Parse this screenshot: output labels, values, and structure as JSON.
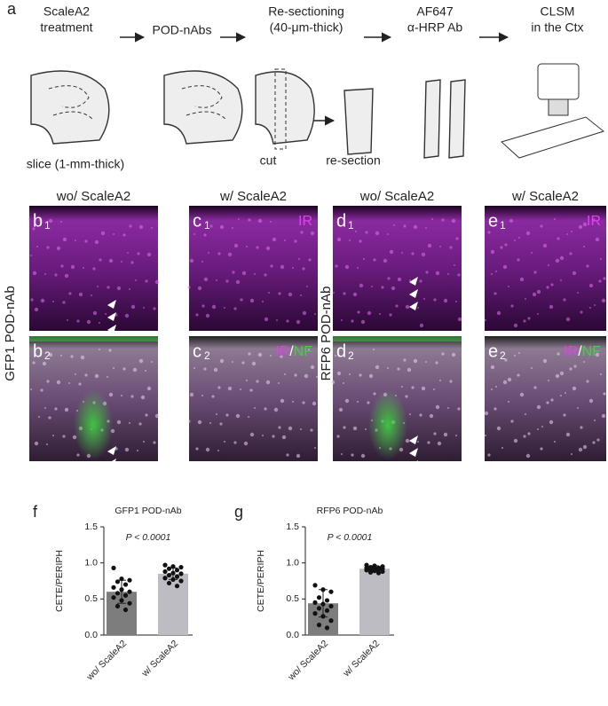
{
  "panel_a": {
    "letter": "a",
    "steps": [
      [
        "ScaleA2",
        "treatment"
      ],
      [
        "POD-nAbs"
      ],
      [
        "Re-sectioning",
        "(40-μm-thick)"
      ],
      [
        "AF647",
        "α-HRP Ab"
      ],
      [
        "CLSM",
        "in the Ctx"
      ]
    ],
    "captions": [
      "slice (1-mm-thick)",
      "cut",
      "re-section"
    ]
  },
  "micrographs": {
    "columns": [
      "wo/ ScaleA2",
      "w/ ScaleA2",
      "wo/ ScaleA2",
      "w/ ScaleA2"
    ],
    "rows": [
      "GFP1 POD-nAb",
      "RFP6 POD-nAb"
    ],
    "panels": [
      {
        "letter": "b",
        "sub": "1"
      },
      {
        "letter": "c",
        "sub": "1"
      },
      {
        "letter": "d",
        "sub": "1"
      },
      {
        "letter": "e",
        "sub": "1"
      },
      {
        "letter": "b",
        "sub": "2"
      },
      {
        "letter": "c",
        "sub": "2"
      },
      {
        "letter": "d",
        "sub": "2"
      },
      {
        "letter": "e",
        "sub": "2"
      }
    ],
    "overlay": {
      "ir": "IR",
      "slash": "/",
      "nf": "NF"
    }
  },
  "chart_data": [
    {
      "panel": "f",
      "type": "bar",
      "title": "GFP1 POD-nAb",
      "annotation": "P < 0.0001",
      "ylabel": "CETE/PERIPH",
      "categories": [
        "wo/ ScaleA2",
        "w/ ScaleA2"
      ],
      "values": [
        0.6,
        0.85
      ],
      "errors": [
        0.16,
        0.08
      ],
      "colors": [
        "#7d7d7d",
        "#bcbcc2"
      ],
      "points": [
        [
          0.93,
          0.78,
          0.76,
          0.74,
          0.7,
          0.66,
          0.63,
          0.6,
          0.58,
          0.55,
          0.52,
          0.48,
          0.44,
          0.4,
          0.35
        ],
        [
          0.97,
          0.95,
          0.94,
          0.92,
          0.9,
          0.88,
          0.86,
          0.85,
          0.83,
          0.81,
          0.79,
          0.77,
          0.75,
          0.72,
          0.68
        ]
      ],
      "ylim": [
        0,
        1.5
      ],
      "yticks": [
        {
          "value": 0,
          "label": "0.0"
        },
        {
          "value": 0.5,
          "label": "0.5"
        },
        {
          "value": 1,
          "label": "1.0"
        },
        {
          "value": 1.5,
          "label": "1.5"
        }
      ]
    },
    {
      "panel": "g",
      "type": "bar",
      "title": "RFP6 POD-nAb",
      "annotation": "P < 0.0001",
      "ylabel": "CETE/PERIPH",
      "categories": [
        "wo/ ScaleA2",
        "w/ ScaleA2"
      ],
      "values": [
        0.44,
        0.92
      ],
      "errors": [
        0.19,
        0.04
      ],
      "colors": [
        "#7d7d7d",
        "#bcbcc2"
      ],
      "points": [
        [
          0.69,
          0.63,
          0.6,
          0.52,
          0.48,
          0.45,
          0.43,
          0.4,
          0.37,
          0.34,
          0.3,
          0.26,
          0.2,
          0.14,
          0.1
        ],
        [
          0.97,
          0.96,
          0.95,
          0.94,
          0.93,
          0.93,
          0.92,
          0.92,
          0.91,
          0.91,
          0.9,
          0.89,
          0.88,
          0.87,
          0.86
        ]
      ],
      "ylim": [
        0,
        1.5
      ],
      "yticks": [
        {
          "value": 0,
          "label": "0.0"
        },
        {
          "value": 0.5,
          "label": "0.5"
        },
        {
          "value": 1,
          "label": "1.0"
        },
        {
          "value": 1.5,
          "label": "1.5"
        }
      ]
    }
  ]
}
